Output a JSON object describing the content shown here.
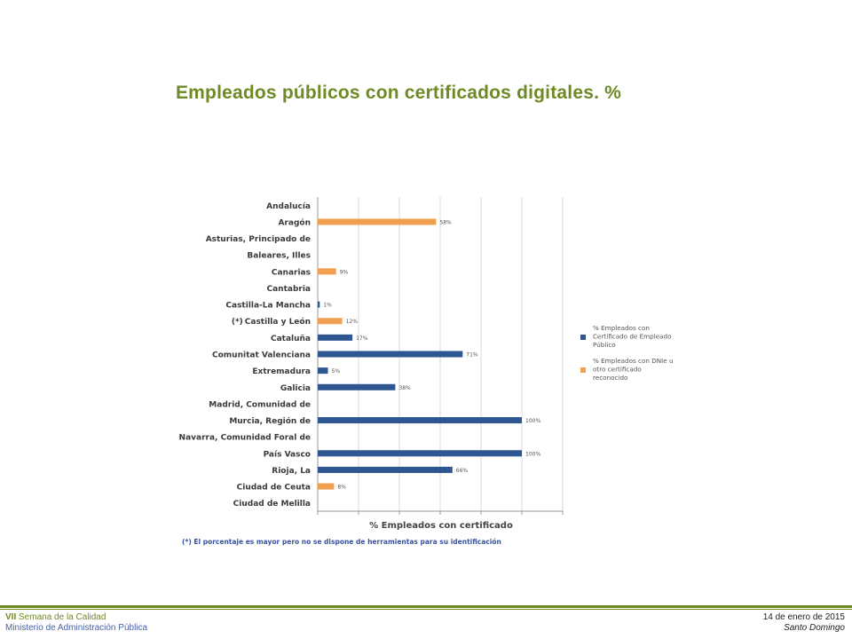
{
  "slide": {
    "title": "Empleados públicos con certificados digitales. %"
  },
  "footer": {
    "event_prefix": "VII",
    "event_name": "Semana de la Calidad",
    "organization": "Ministerio de Administración Pública",
    "date": "14 de enero de 2015",
    "place": "Santo Domingo"
  },
  "colors": {
    "title": "#6e8a24",
    "series_blue": "#2e5691",
    "series_orange": "#f0a050",
    "grid": "#d8d8d8",
    "footnote": "#3a52a0"
  },
  "chart_data": {
    "type": "bar",
    "orientation": "horizontal",
    "categories": [
      "Andalucía",
      "Aragón",
      "Asturias, Principado de",
      "Baleares, Illes",
      "Canarias",
      "Cantabria",
      "Castilla-La Mancha",
      "Castilla y León",
      "Cataluña",
      "Comunitat Valenciana",
      "Extremadura",
      "Galicia",
      "Madrid, Comunidad de",
      "Murcia, Región de",
      "Navarra, Comunidad Foral de",
      "País Vasco",
      "Rioja, La",
      "Ciudad de Ceuta",
      "Ciudad de Melilla"
    ],
    "category_markers": [
      "",
      "",
      "",
      "",
      "",
      "",
      "",
      "(*)",
      "",
      "",
      "",
      "",
      "",
      "",
      "",
      "",
      "",
      "",
      ""
    ],
    "series": [
      {
        "name": "% Empleados con Certificado de Empleado Público",
        "color": "#2e5691",
        "values": [
          null,
          null,
          null,
          null,
          null,
          null,
          1,
          null,
          17,
          71,
          5,
          38,
          null,
          100,
          null,
          100,
          66,
          null,
          null
        ],
        "labels": [
          "",
          "",
          "",
          "",
          "",
          "",
          "1%",
          "",
          "17%",
          "71%",
          "5%",
          "38%",
          "",
          "100%",
          "",
          "100%",
          "66%",
          "",
          ""
        ]
      },
      {
        "name": "% Empleados con DNIe u otro certificado reconocido",
        "color": "#f0a050",
        "values": [
          null,
          58,
          null,
          null,
          9,
          null,
          null,
          12,
          null,
          null,
          null,
          null,
          null,
          null,
          null,
          null,
          null,
          8,
          null
        ],
        "labels": [
          "",
          "58%",
          "",
          "",
          "9%",
          "",
          "",
          "12%",
          "",
          "",
          "",
          "",
          "",
          "",
          "",
          "",
          "",
          "8%",
          ""
        ]
      }
    ],
    "xlabel": "% Empleados con certificado",
    "ylabel": "",
    "xlim": [
      0,
      120
    ],
    "grid": true,
    "legend_position": "right",
    "footnote": "(*) El porcentaje es mayor pero no se dispone de herramientas para su identificación"
  }
}
